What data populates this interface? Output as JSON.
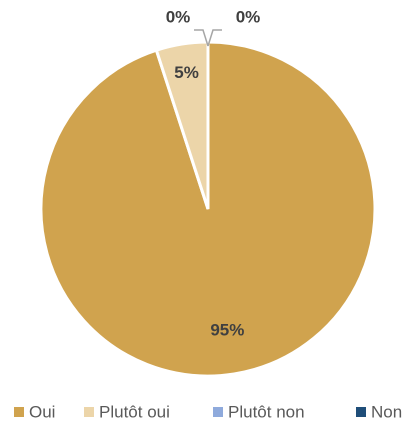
{
  "chart_data": {
    "type": "pie",
    "categories": [
      "Oui",
      "Plutôt oui",
      "Plutôt non",
      "Non"
    ],
    "values": [
      95,
      5,
      0,
      0
    ],
    "value_labels": [
      "95%",
      "5%",
      "0%",
      "0%"
    ],
    "colors": [
      "#d0a34e",
      "#ecd5a9",
      "#8faadc",
      "#1f4e79"
    ],
    "legend": "bottom"
  }
}
